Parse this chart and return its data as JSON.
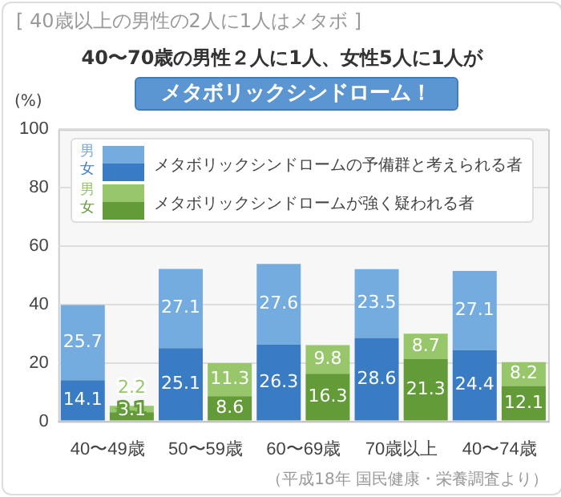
{
  "chart_data": {
    "type": "bar",
    "title": "[ 40歳以上の男性の2人に1人はメタボ ]",
    "subtitle": "40〜70歳の男性２人に1人、女性5人に1人が",
    "ylabel": "(%)",
    "categories": [
      "40〜49歳",
      null,
      "50〜59歳",
      null,
      "60〜69歳",
      null,
      "70歳以上",
      null,
      "40〜74歳",
      null
    ],
    "series": [
      {
        "colors": [
          "#3a7cc4",
          "#629b38",
          "#3a7cc4",
          "#629b38",
          "#3a7cc4",
          "#629b38",
          "#3a7cc4",
          "#629b38",
          "#3a7cc4",
          "#629b38"
        ],
        "values": [
          14.1,
          3.1,
          25.1,
          8.6,
          26.3,
          16.3,
          28.6,
          21.3,
          24.4,
          12.1
        ]
      },
      {
        "colors": [
          "#74acdf",
          "#97c66b",
          "#74acdf",
          "#97c66b",
          "#74acdf",
          "#97c66b",
          "#74acdf",
          "#97c66b",
          "#74acdf",
          "#97c66b"
        ],
        "values": [
          25.7,
          2.2,
          27.1,
          11.3,
          27.6,
          9.8,
          23.5,
          8.7,
          27.1,
          8.2
        ]
      }
    ],
    "stacked": true,
    "data_labels": true,
    "ylim": [
      0,
      100
    ],
    "yticks": [
      0,
      20,
      40,
      60,
      80,
      100
    ],
    "grid": "y",
    "annotations": [
      "メタボリックシンドローム！",
      "男",
      "女",
      "メタボリックシンドロームの予備群と考えられる者",
      "男",
      "女",
      "メタボリックシンドロームが強く疑われる者",
      "（平成18年 国民健康・栄養調査より）"
    ]
  }
}
